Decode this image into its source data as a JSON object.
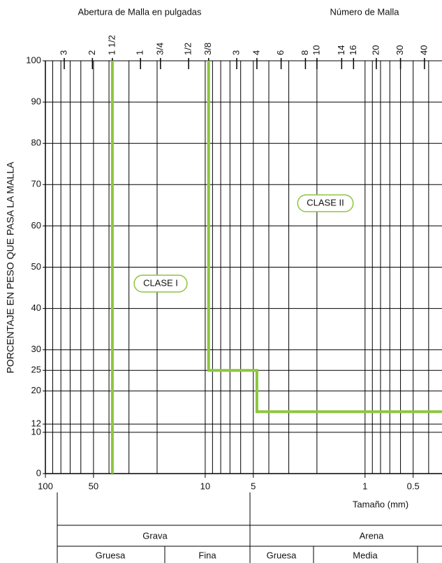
{
  "chart_data": {
    "type": "line",
    "header_left": "Abertura de Malla en pulgadas",
    "header_right": "Número de Malla",
    "ylabel": "PORCENTAJE EN PESO QUE PASA LA MALLA",
    "xlabel": "Tamaño (mm)",
    "xscale": "log",
    "xlim": [
      100,
      0.33
    ],
    "ylim": [
      0,
      100
    ],
    "xticks": [
      100,
      50,
      10,
      5,
      1,
      0.5
    ],
    "yticks": [
      0,
      10,
      12,
      20,
      25,
      30,
      40,
      50,
      60,
      70,
      80,
      90,
      100
    ],
    "x2ticks": [
      {
        "value": 76.2,
        "label": "3"
      },
      {
        "value": 50.8,
        "label": "2"
      },
      {
        "value": 38.1,
        "label": "1 1/2"
      },
      {
        "value": 25.4,
        "label": "1"
      },
      {
        "value": 19.05,
        "label": "3/4"
      },
      {
        "value": 12.7,
        "label": "1/2"
      },
      {
        "value": 9.525,
        "label": "3/8"
      },
      {
        "value": 6.35,
        "label": "3"
      },
      {
        "value": 4.75,
        "label": "4"
      },
      {
        "value": 3.35,
        "label": "6"
      },
      {
        "value": 2.36,
        "label": "8"
      },
      {
        "value": 2.0,
        "label": "10"
      },
      {
        "value": 1.4,
        "label": "14"
      },
      {
        "value": 1.18,
        "label": "16"
      },
      {
        "value": 0.85,
        "label": "20"
      },
      {
        "value": 0.6,
        "label": "30"
      },
      {
        "value": 0.425,
        "label": "40"
      }
    ],
    "xgrid": [
      90,
      80,
      70,
      60,
      50,
      40,
      30,
      20,
      10,
      9,
      8,
      7,
      6,
      5,
      4,
      3,
      2,
      1,
      0.9,
      0.8,
      0.7,
      0.6,
      0.5,
      0.4
    ],
    "grid": true,
    "series": [
      {
        "name": "CLASE I",
        "color": "#8cc63e",
        "x": [
          38.1,
          38.1
        ],
        "values": [
          0,
          100
        ]
      },
      {
        "name": "CLASE II",
        "color": "#8cc63e",
        "x": [
          9.525,
          9.525,
          4.75,
          4.75,
          0.33
        ],
        "values": [
          100,
          25,
          25,
          15,
          15
        ]
      }
    ],
    "classification": {
      "groups": [
        "Grava",
        "Arena"
      ],
      "subgroups": [
        "Gruesa",
        "Fina",
        "Gruesa",
        "Media"
      ]
    }
  }
}
